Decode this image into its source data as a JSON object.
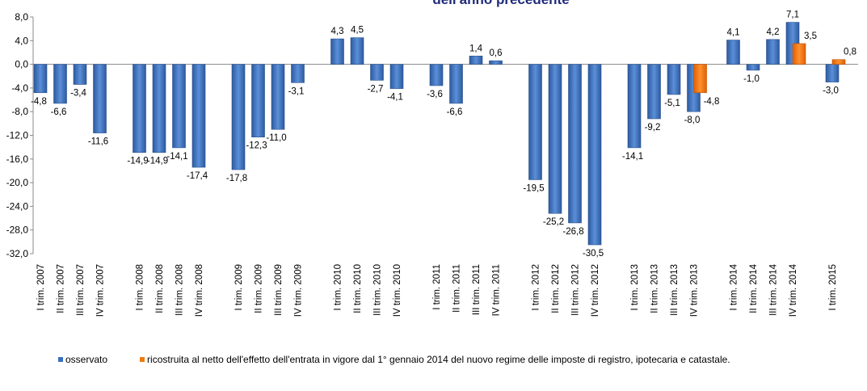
{
  "chart_data": {
    "type": "bar",
    "title": "dell'anno precedente",
    "ylim": [
      -32,
      8
    ],
    "yticks": [
      "8,0",
      "4,0",
      "0,0",
      "-4,0",
      "-8,0",
      "-12,0",
      "-16,0",
      "-20,0",
      "-24,0",
      "-28,0",
      "-32,0"
    ],
    "grid": false,
    "legend_placement": "bottom",
    "categories": [
      "I trim. 2007",
      "II trim. 2007",
      "III trim. 2007",
      "IV trim. 2007",
      "I trim. 2008",
      "II trim. 2008",
      "III trim. 2008",
      "IV trim. 2008",
      "I trim. 2009",
      "II trim. 2009",
      "III trim. 2009",
      "IV trim. 2009",
      "I trim. 2010",
      "II trim. 2010",
      "III trim. 2010",
      "IV trim. 2010",
      "I trim. 2011",
      "II trim. 2011",
      "III trim. 2011",
      "IV trim. 2011",
      "I trim. 2012",
      "II trim. 2012",
      "III trim. 2012",
      "IV trim. 2012",
      "I trim. 2013",
      "II trim. 2013",
      "III trim. 2013",
      "IV trim. 2013",
      "I trim. 2014",
      "II trim. 2014",
      "III trim. 2014",
      "IV trim. 2014",
      "I trim. 2015"
    ],
    "series": [
      {
        "name": "osservato",
        "color": "#3a6fc0",
        "values": [
          -4.8,
          -6.6,
          -3.4,
          -11.6,
          -14.9,
          -14.9,
          -14.1,
          -17.4,
          -17.8,
          -12.3,
          -11.0,
          -3.1,
          4.3,
          4.5,
          -2.7,
          -4.1,
          -3.6,
          -6.6,
          1.4,
          0.6,
          -19.5,
          -25.2,
          -26.8,
          -30.5,
          -14.1,
          -9.2,
          -5.1,
          -8.0,
          4.1,
          -1.0,
          4.2,
          7.1,
          -3.0
        ]
      },
      {
        "name": "ricostruita al netto dell'effetto dell'entrata in vigore dal 1° gennaio 2014 del nuovo regime delle imposte di registro, ipotecaria e catastale.",
        "color": "#f07a10",
        "values": [
          null,
          null,
          null,
          null,
          null,
          null,
          null,
          null,
          null,
          null,
          null,
          null,
          null,
          null,
          null,
          null,
          null,
          null,
          null,
          null,
          null,
          null,
          null,
          null,
          null,
          null,
          null,
          -4.8,
          null,
          null,
          null,
          3.5,
          0.8
        ]
      }
    ]
  }
}
